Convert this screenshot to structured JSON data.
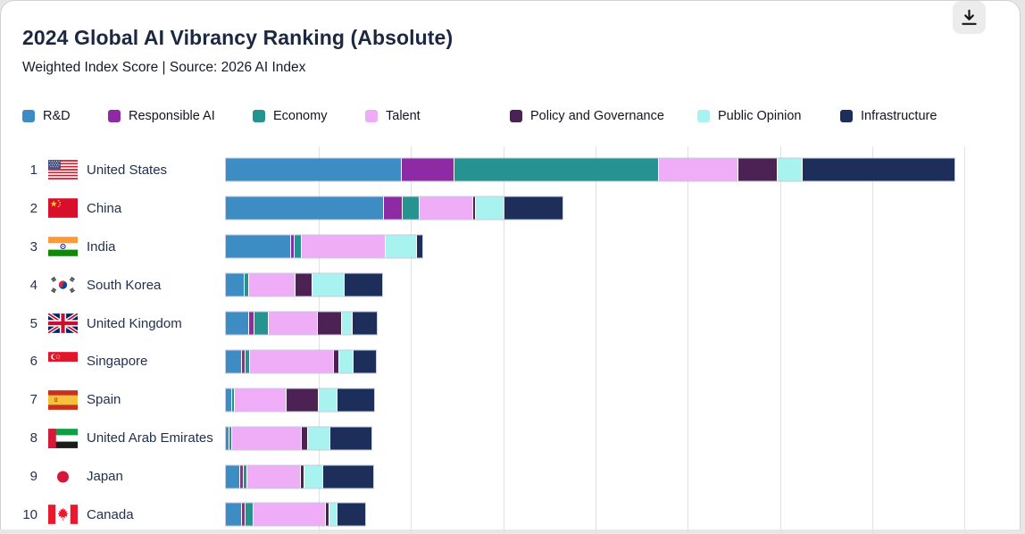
{
  "header": {
    "title": "2024 Global AI Vibrancy Ranking (Absolute)",
    "subtitle": "Weighted Index Score | Source: 2026 AI Index",
    "download_icon": "download-icon"
  },
  "chart_data": {
    "type": "bar",
    "stacked": true,
    "orientation": "horizontal",
    "title": "2024 Global AI Vibrancy Ranking (Absolute)",
    "subtitle": "Weighted Index Score | Source: 2026 AI Index",
    "axis": {
      "min": 0,
      "gridline_interval_points": 10,
      "gridlines_count": 8,
      "tick_labels_visible": false
    },
    "legend_position": "top",
    "categories": [
      "United States",
      "China",
      "India",
      "South Korea",
      "United Kingdom",
      "Singapore",
      "Spain",
      "United Arab Emirates",
      "Japan",
      "Canada"
    ],
    "ranks": [
      1,
      2,
      3,
      4,
      5,
      6,
      7,
      8,
      9,
      10
    ],
    "flags": [
      "us",
      "cn",
      "in",
      "kr",
      "gb",
      "sg",
      "es",
      "ae",
      "jp",
      "ca"
    ],
    "series": [
      {
        "name": "R&D",
        "color": "#3e8cc4",
        "values": [
          19.0,
          17.0,
          7.0,
          1.9,
          2.4,
          1.6,
          0.6,
          0.25,
          1.5,
          1.6
        ]
      },
      {
        "name": "Responsible AI",
        "color": "#8f2aa5",
        "values": [
          5.6,
          1.9,
          0.3,
          0,
          0.5,
          0.3,
          0,
          0,
          0.3,
          0.3
        ]
      },
      {
        "name": "Economy",
        "color": "#269390",
        "values": [
          22.1,
          1.7,
          0.7,
          0.4,
          1.5,
          0.4,
          0.2,
          0.2,
          0.3,
          0.8
        ]
      },
      {
        "name": "Talent",
        "color": "#eeadf6",
        "values": [
          8.5,
          5.7,
          9.0,
          4.9,
          5.2,
          9.0,
          5.5,
          7.5,
          5.7,
          7.7
        ]
      },
      {
        "name": "Policy and Governance",
        "color": "#4c2153",
        "values": [
          4.2,
          0.15,
          0,
          1.7,
          2.5,
          0.5,
          3.4,
          0.55,
          0.3,
          0.3
        ]
      },
      {
        "name": "Public Opinion",
        "color": "#a8f2ef",
        "values": [
          2.6,
          3.0,
          3.3,
          3.4,
          1.1,
          1.5,
          1.9,
          2.3,
          1.9,
          0.8
        ]
      },
      {
        "name": "Infrastructure",
        "color": "#1d2e5a",
        "values": [
          16.5,
          6.3,
          0.6,
          4.1,
          2.6,
          2.4,
          4.0,
          4.5,
          5.4,
          3.0
        ]
      }
    ],
    "totals": [
      78.5,
      35.75,
      20.9,
      16.4,
      15.8,
      15.7,
      15.6,
      15.3,
      15.4,
      14.5
    ]
  }
}
